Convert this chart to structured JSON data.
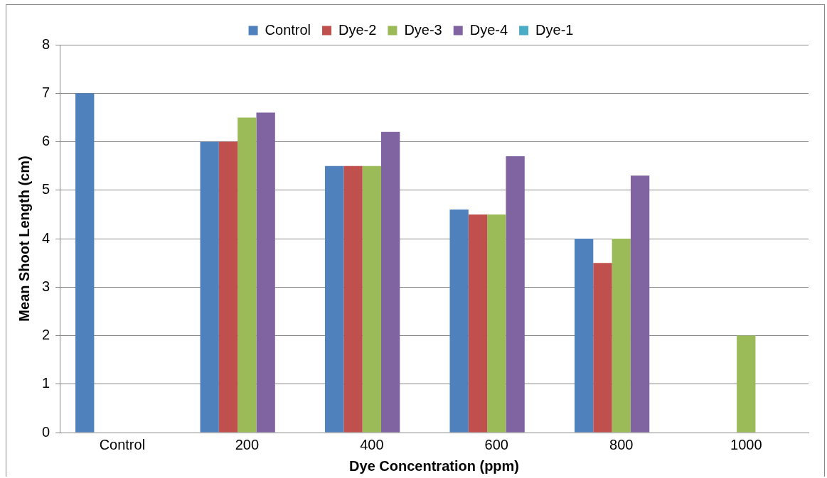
{
  "chart_data": {
    "type": "bar",
    "xlabel": "Dye Concentration (ppm)",
    "ylabel": "Mean Shoot Length (cm)",
    "categories": [
      "Control",
      "200",
      "400",
      "600",
      "800",
      "1000"
    ],
    "series": [
      {
        "name": "Control",
        "color": "#4f81bd",
        "values": [
          7,
          6,
          5.5,
          4.6,
          4.0,
          null
        ]
      },
      {
        "name": "Dye-2",
        "color": "#c0504d",
        "values": [
          null,
          6,
          5.5,
          4.5,
          3.5,
          null
        ]
      },
      {
        "name": "Dye-3",
        "color": "#9bbb59",
        "values": [
          null,
          6.5,
          5.5,
          4.5,
          4.0,
          2.0
        ]
      },
      {
        "name": "Dye-4",
        "color": "#8064a2",
        "values": [
          null,
          6.6,
          6.2,
          5.7,
          5.3,
          null
        ]
      },
      {
        "name": "Dye-1",
        "color": "#4bacc6",
        "values": [
          null,
          null,
          null,
          null,
          null,
          null
        ]
      }
    ],
    "ylim": [
      0,
      8
    ],
    "yticks": [
      0,
      1,
      2,
      3,
      4,
      5,
      6,
      7,
      8
    ],
    "grid": "y",
    "legend": "top"
  }
}
